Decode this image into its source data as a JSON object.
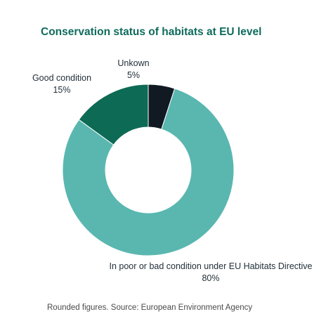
{
  "chart_data": {
    "type": "pie",
    "title": "Conservation status of habitats at EU level",
    "slices": [
      {
        "label": "Unkown",
        "value": 5,
        "value_label": "5%",
        "color": "#111a22"
      },
      {
        "label": "In poor or bad condition under EU Habitats Directive",
        "value": 80,
        "value_label": "80%",
        "color": "#5ab7b0"
      },
      {
        "label": "Good condition",
        "value": 15,
        "value_label": "15%",
        "color": "#0d6a55"
      }
    ],
    "donut": true,
    "start_angle": "12 o'clock, clockwise",
    "legend": "none (labels placed next to slices)"
  },
  "footnote": "Rounded figures. Source: European Environment Agency"
}
